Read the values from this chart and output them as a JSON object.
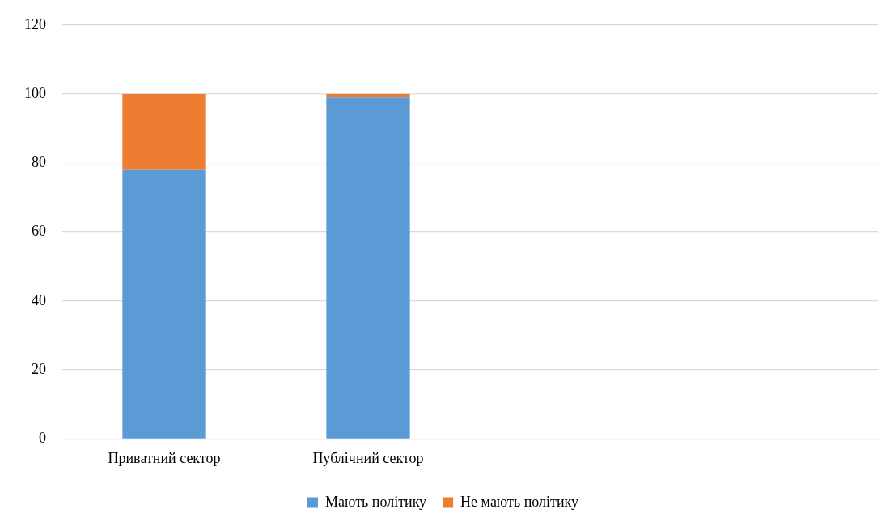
{
  "chart_data": {
    "type": "bar",
    "stacked": true,
    "categories": [
      "Приватний сектор",
      "Публічний сектор",
      null,
      null
    ],
    "series": [
      {
        "name": "Мають політику",
        "color": "#5b9bd5",
        "values": [
          78,
          99,
          null,
          null
        ]
      },
      {
        "name": "Не мають політику",
        "color": "#ed7d31",
        "values": [
          22,
          1,
          null,
          null
        ]
      }
    ],
    "ylim": [
      0,
      120
    ],
    "yticks": [
      0,
      20,
      40,
      60,
      80,
      100,
      120
    ],
    "grid": "y",
    "legend": "bottom"
  }
}
